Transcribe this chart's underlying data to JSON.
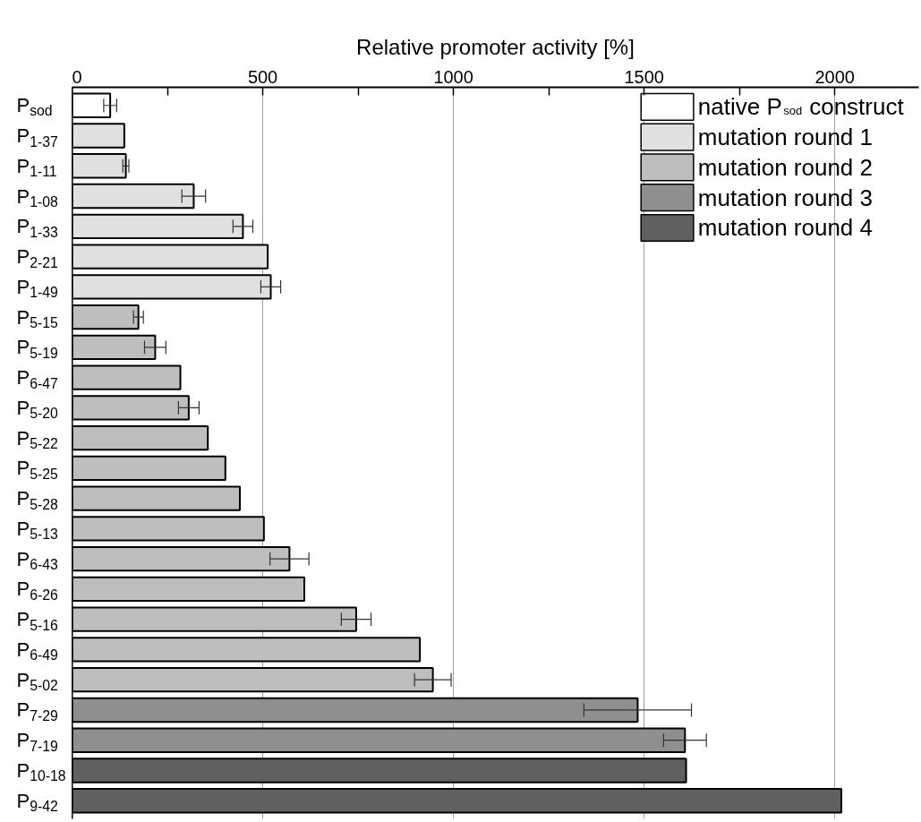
{
  "chart_data": {
    "type": "bar",
    "orientation": "horizontal",
    "xlabel": "Relative promoter activity [%]",
    "categories": [
      "P$_{sod}$",
      "P$_{1-37}$",
      "P$_{1-11}$",
      "P$_{1-08}$",
      "P$_{1-33}$",
      "P$_{2-21}$",
      "P$_{1-49}$",
      "P$_{5-15}$",
      "P$_{5-19}$",
      "P$_{6-47}$",
      "P$_{5-20}$",
      "P$_{5-22}$",
      "P$_{5-25}$",
      "P$_{5-28}$",
      "P$_{5-13}$",
      "P$_{6-43}$",
      "P$_{6-26}$",
      "P$_{5-16}$",
      "P$_{6-49}$",
      "P$_{5-02}$",
      "P$_{7-29}$",
      "P$_{7-19}$",
      "P$_{10-18}$",
      "P$_{9-42}$"
    ],
    "series": [
      {
        "name": "native P$_{sod}$ construct",
        "color": "#ffffff",
        "values": [
          100,
          null,
          null,
          null,
          null,
          null,
          null,
          null,
          null,
          null,
          null,
          null,
          null,
          null,
          null,
          null,
          null,
          null,
          null,
          null,
          null,
          null,
          null,
          null
        ],
        "errors": [
          17,
          null,
          null,
          null,
          null,
          null,
          null,
          null,
          null,
          null,
          null,
          null,
          null,
          null,
          null,
          null,
          null,
          null,
          null,
          null,
          null,
          null,
          null,
          null
        ]
      },
      {
        "name": "mutation round 1",
        "color": "#e0e0e0",
        "values": [
          null,
          137,
          141,
          319,
          448,
          513,
          521,
          null,
          null,
          null,
          null,
          null,
          null,
          null,
          null,
          null,
          null,
          null,
          null,
          null,
          null,
          null,
          null,
          null
        ],
        "errors": [
          null,
          null,
          8,
          31,
          26,
          null,
          26,
          null,
          null,
          null,
          null,
          null,
          null,
          null,
          null,
          null,
          null,
          null,
          null,
          null,
          null,
          null,
          null,
          null
        ]
      },
      {
        "name": "mutation round 2",
        "color": "#bebebe",
        "values": [
          null,
          null,
          null,
          null,
          null,
          null,
          null,
          174,
          218,
          284,
          306,
          356,
          402,
          440,
          503,
          570,
          609,
          745,
          912,
          946,
          null,
          null,
          null,
          null
        ],
        "errors": [
          null,
          null,
          null,
          null,
          null,
          null,
          null,
          13,
          28,
          null,
          27,
          null,
          null,
          null,
          null,
          51,
          null,
          39,
          null,
          48,
          null,
          null,
          null,
          null
        ]
      },
      {
        "name": "mutation round 3",
        "color": "#8f8f8f",
        "values": [
          null,
          null,
          null,
          null,
          null,
          null,
          null,
          null,
          null,
          null,
          null,
          null,
          null,
          null,
          null,
          null,
          null,
          null,
          null,
          null,
          1483,
          1607,
          null,
          null
        ],
        "errors": [
          null,
          null,
          null,
          null,
          null,
          null,
          null,
          null,
          null,
          null,
          null,
          null,
          null,
          null,
          null,
          null,
          null,
          null,
          null,
          null,
          141,
          56,
          null,
          null
        ]
      },
      {
        "name": "mutation round 4",
        "color": "#606060",
        "values": [
          null,
          null,
          null,
          null,
          null,
          null,
          null,
          null,
          null,
          null,
          null,
          null,
          null,
          null,
          null,
          null,
          null,
          null,
          null,
          null,
          null,
          null,
          1610,
          2017
        ],
        "errors": [
          null,
          null,
          null,
          null,
          null,
          null,
          null,
          null,
          null,
          null,
          null,
          null,
          null,
          null,
          null,
          null,
          null,
          null,
          null,
          null,
          null,
          null,
          null,
          null
        ]
      }
    ],
    "xlim": [
      0,
      2220
    ],
    "xticks": [
      0,
      {
        "value": 250,
        "label": null
      },
      500,
      {
        "value": 750,
        "label": null
      },
      1000,
      {
        "value": 1250,
        "label": null
      },
      1500,
      {
        "value": 1750,
        "label": null
      },
      2000
    ],
    "grid": "x",
    "legend": "top right"
  }
}
